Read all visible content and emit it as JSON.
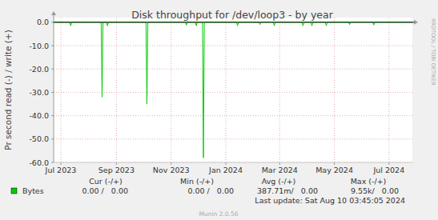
{
  "chart_data": {
    "type": "line",
    "title": "Disk throughput for /dev/loop3 - by year",
    "y_label": "Pr second read (-) / write (+)",
    "x": [
      0,
      18,
      19,
      20,
      53,
      54,
      55,
      59,
      60,
      61,
      103,
      104,
      105,
      147,
      148,
      149,
      158,
      159,
      160,
      166,
      167,
      168,
      204,
      205,
      206,
      229,
      230,
      231,
      245,
      246,
      247,
      277,
      278,
      279,
      287,
      288,
      289,
      303,
      304,
      305,
      329,
      330,
      331,
      356,
      357,
      358,
      400
    ],
    "series": [
      {
        "name": "Bytes",
        "color": "#00cc00",
        "values": [
          0,
          0,
          -1.5,
          0,
          0,
          -32,
          0,
          0,
          -1.5,
          0,
          0,
          -35,
          0,
          0,
          -1.2,
          0,
          0,
          -1.5,
          0,
          0,
          -58,
          0,
          0,
          -1.5,
          0,
          0,
          -1,
          0,
          0,
          -1.5,
          0,
          0,
          -1.5,
          0,
          0,
          -1.5,
          0,
          0,
          -1.5,
          0,
          0,
          -1,
          0,
          0,
          -1.2,
          0,
          0
        ],
        "stats": [
          "0.00 /   0.00",
          "0.00 /   0.00",
          "387.71m/   0.00",
          "9.55k/   0.00"
        ]
      }
    ],
    "xlim": [
      0,
      400
    ],
    "xticks": [
      {
        "value": 8,
        "label": "Jul 2023"
      },
      {
        "value": 70,
        "label": "Sep 2023"
      },
      {
        "value": 131,
        "label": "Nov 2023"
      },
      {
        "value": 192,
        "label": "Jan 2024"
      },
      {
        "value": 252,
        "label": "Mar 2024"
      },
      {
        "value": 313,
        "label": "May 2024"
      },
      {
        "value": 374,
        "label": "Jul 2024"
      }
    ],
    "ylim": [
      -60,
      2
    ],
    "yticks": [
      {
        "value": 0,
        "label": "0.0"
      },
      {
        "value": -10,
        "label": "-10.0"
      },
      {
        "value": -20,
        "label": "-20.0"
      },
      {
        "value": -30,
        "label": "-30.0"
      },
      {
        "value": -40,
        "label": "-40.0"
      },
      {
        "value": -50,
        "label": "-50.0"
      },
      {
        "value": -60,
        "label": "-60.0"
      }
    ],
    "grid": true,
    "stats_header": [
      "Cur (-/+)",
      "Min (-/+)",
      "Avg (-/+)",
      "Max (-/+)"
    ],
    "last_update": "Last update: Sat Aug 10 03:45:05 2024",
    "footer": "Munin 2.0.56",
    "watermark": "RRDTOOL / TOBI OETIKER"
  }
}
